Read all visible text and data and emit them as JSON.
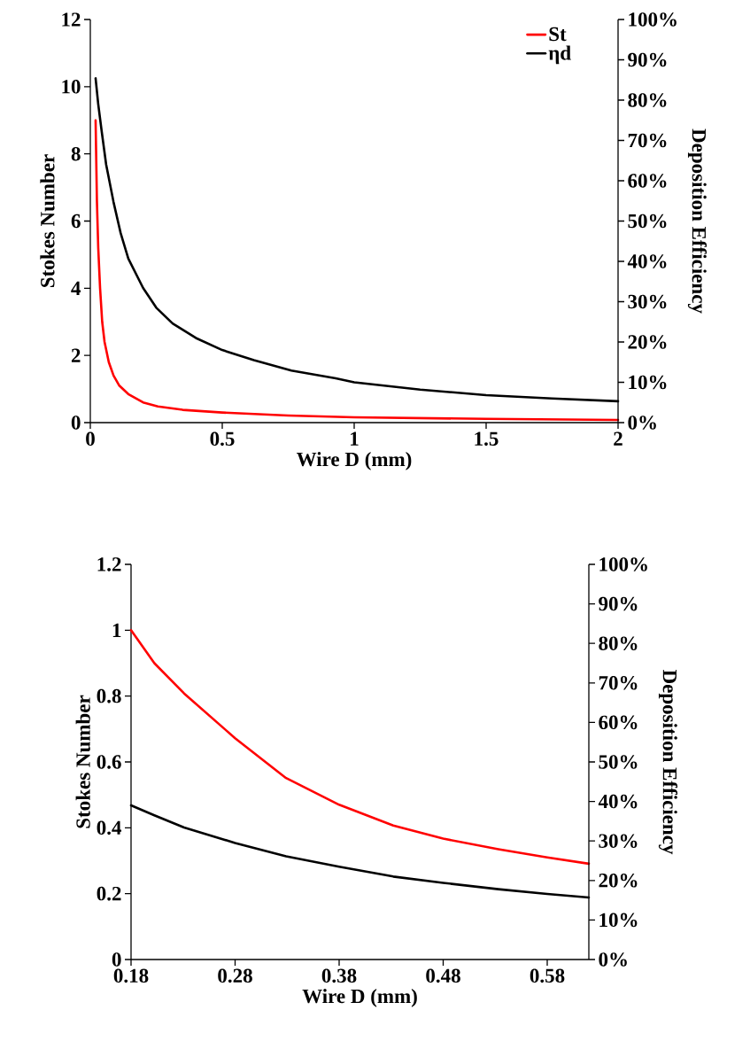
{
  "chart_data": [
    {
      "type": "line",
      "xlabel": "Wire D (mm)",
      "ylabel": "Stokes Number",
      "y2label": "Deposition Efficiency",
      "xlim": [
        0,
        2
      ],
      "xticks": [
        0,
        0.5,
        1,
        1.5,
        2
      ],
      "ylim": [
        0,
        12
      ],
      "yticks": [
        0,
        2,
        4,
        6,
        8,
        10,
        12
      ],
      "y2lim": [
        0,
        100
      ],
      "y2ticks": [
        {
          "value": 0,
          "label": "0%"
        },
        {
          "value": 10,
          "label": "10%"
        },
        {
          "value": 20,
          "label": "20%"
        },
        {
          "value": 30,
          "label": "30%"
        },
        {
          "value": 40,
          "label": "40%"
        },
        {
          "value": 50,
          "label": "50%"
        },
        {
          "value": 60,
          "label": "60%"
        },
        {
          "value": 70,
          "label": "70%"
        },
        {
          "value": 80,
          "label": "80%"
        },
        {
          "value": 90,
          "label": "90%"
        },
        {
          "value": 100,
          "label": "100%"
        }
      ],
      "legend": "top right",
      "series": [
        {
          "name": "St",
          "color": "#ff0000",
          "x": [
            0.02,
            0.025,
            0.03,
            0.037,
            0.045,
            0.054,
            0.07,
            0.088,
            0.11,
            0.144,
            0.2,
            0.256,
            0.35,
            0.5,
            0.75,
            1,
            1.5,
            2
          ],
          "values": [
            9.0,
            6.6,
            5.2,
            4.0,
            3.0,
            2.4,
            1.8,
            1.4,
            1.1,
            0.85,
            0.6,
            0.48,
            0.38,
            0.3,
            0.21,
            0.16,
            0.11,
            0.08
          ]
        },
        {
          "name": "ηd",
          "color": "#000000",
          "axis": "y2",
          "x": [
            0.02,
            0.03,
            0.043,
            0.06,
            0.088,
            0.115,
            0.144,
            0.2,
            0.25,
            0.312,
            0.4,
            0.5,
            0.62,
            0.762,
            0.93,
            1,
            1.25,
            1.5,
            1.75,
            2
          ],
          "values": [
            85.4,
            79,
            72.3,
            64,
            54.7,
            47,
            40.7,
            33.4,
            28.5,
            24.6,
            21,
            18,
            15.5,
            12.9,
            11,
            10,
            8.2,
            6.8,
            6,
            5.3
          ]
        }
      ]
    },
    {
      "type": "line",
      "xlabel": "Wire D (mm)",
      "ylabel": "Stokes Number",
      "y2label": "Deposition Efficiency",
      "xlim": [
        0.18,
        0.62
      ],
      "xticks": [
        0.18,
        0.28,
        0.38,
        0.48,
        0.58
      ],
      "ylim": [
        0,
        1.2
      ],
      "yticks": [
        0,
        0.2,
        0.4,
        0.6,
        0.8,
        1,
        1.2
      ],
      "y2lim": [
        0,
        100
      ],
      "y2ticks": [
        {
          "value": 0,
          "label": "0%"
        },
        {
          "value": 10,
          "label": "10%"
        },
        {
          "value": 20,
          "label": "20%"
        },
        {
          "value": 30,
          "label": "30%"
        },
        {
          "value": 40,
          "label": "40%"
        },
        {
          "value": 50,
          "label": "50%"
        },
        {
          "value": 60,
          "label": "60%"
        },
        {
          "value": 70,
          "label": "70%"
        },
        {
          "value": 80,
          "label": "80%"
        },
        {
          "value": 90,
          "label": "90%"
        },
        {
          "value": 100,
          "label": "100%"
        }
      ],
      "series": [
        {
          "color": "#ff0000",
          "x": [
            0.18,
            0.2024,
            0.231,
            0.28,
            0.329,
            0.38,
            0.432,
            0.48,
            0.533,
            0.58,
            0.62
          ],
          "values": [
            1.0,
            0.9,
            0.808,
            0.672,
            0.551,
            0.47,
            0.407,
            0.367,
            0.335,
            0.31,
            0.291
          ]
        },
        {
          "color": "#000000",
          "axis": "y2",
          "x": [
            0.18,
            0.2024,
            0.231,
            0.28,
            0.329,
            0.38,
            0.432,
            0.48,
            0.533,
            0.58,
            0.62
          ],
          "values": [
            39.0,
            36.5,
            33.4,
            29.5,
            26.1,
            23.5,
            21.0,
            19.4,
            17.8,
            16.6,
            15.7
          ]
        }
      ]
    }
  ]
}
